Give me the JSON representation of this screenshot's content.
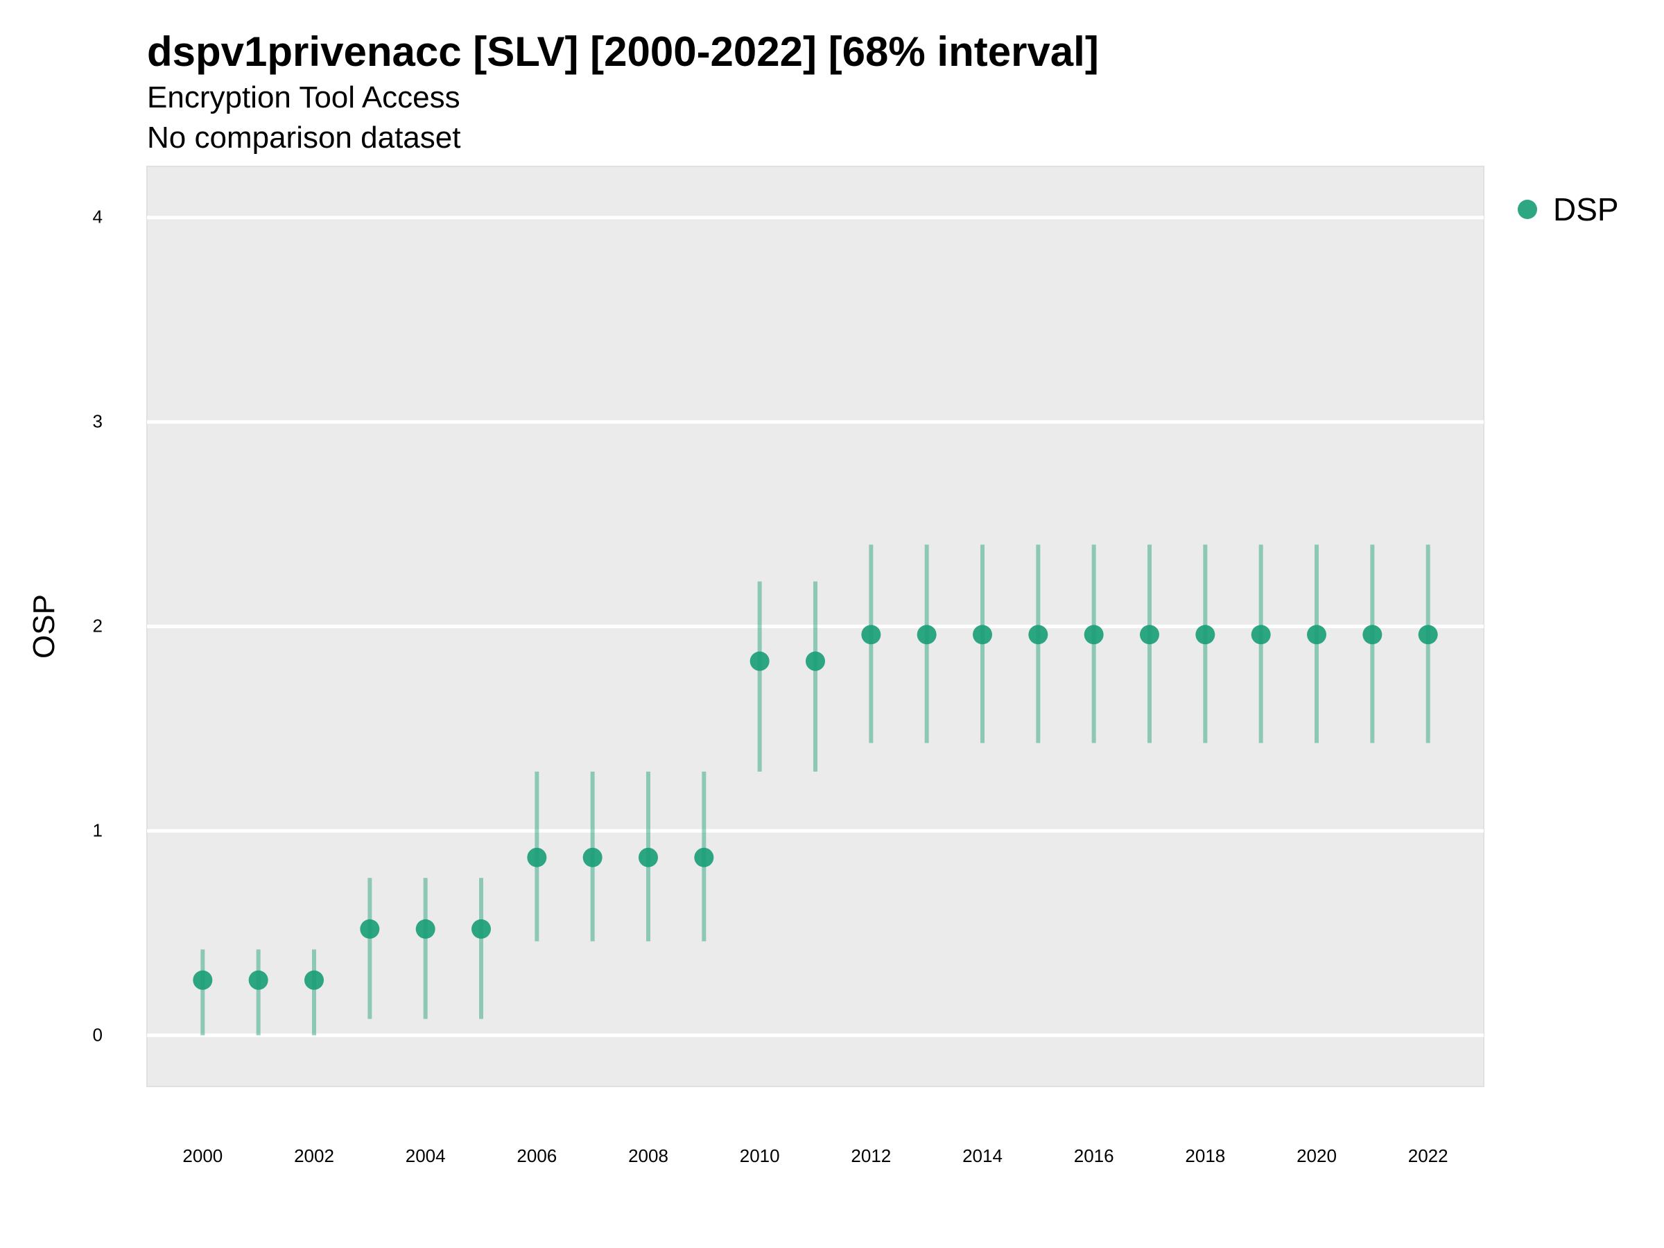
{
  "chart_data": {
    "type": "scatter",
    "title": "dspv1privenacc [SLV] [2000-2022] [68% interval]",
    "subtitle": "Encryption Tool Access",
    "caption": "No comparison dataset",
    "xlabel": "",
    "ylabel": "OSP",
    "xlim": [
      1999,
      2023
    ],
    "ylim": [
      -0.25,
      4.25
    ],
    "x_ticks": [
      "2000",
      "2002",
      "2004",
      "2006",
      "2008",
      "2010",
      "2012",
      "2014",
      "2016",
      "2018",
      "2020",
      "2022"
    ],
    "y_ticks": [
      "0",
      "1",
      "2",
      "3",
      "4"
    ],
    "grid": "horizontal",
    "legend_position": "right",
    "series": [
      {
        "name": "DSP",
        "color": "#1b9e77",
        "x": [
          2000,
          2001,
          2002,
          2003,
          2004,
          2005,
          2006,
          2007,
          2008,
          2009,
          2010,
          2011,
          2012,
          2013,
          2014,
          2015,
          2016,
          2017,
          2018,
          2019,
          2020,
          2021,
          2022
        ],
        "y": [
          0.27,
          0.27,
          0.27,
          0.52,
          0.52,
          0.52,
          0.87,
          0.87,
          0.87,
          0.87,
          1.83,
          1.83,
          1.96,
          1.96,
          1.96,
          1.96,
          1.96,
          1.96,
          1.96,
          1.96,
          1.96,
          1.96,
          1.96
        ],
        "lower": [
          0.0,
          0.0,
          0.0,
          0.08,
          0.08,
          0.08,
          0.46,
          0.46,
          0.46,
          0.46,
          1.29,
          1.29,
          1.43,
          1.43,
          1.43,
          1.43,
          1.43,
          1.43,
          1.43,
          1.43,
          1.43,
          1.43,
          1.43
        ],
        "upper": [
          0.42,
          0.42,
          0.42,
          0.77,
          0.77,
          0.77,
          1.29,
          1.29,
          1.29,
          1.29,
          2.22,
          2.22,
          2.4,
          2.4,
          2.4,
          2.4,
          2.4,
          2.4,
          2.4,
          2.4,
          2.4,
          2.4,
          2.4
        ]
      }
    ]
  }
}
